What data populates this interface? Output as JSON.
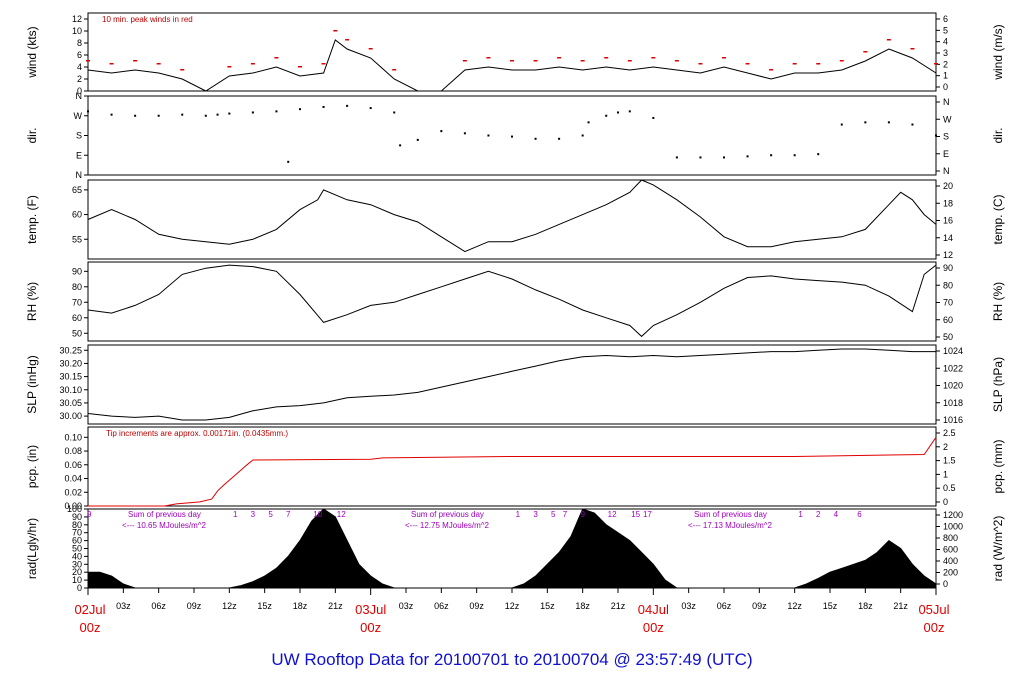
{
  "title": "UW Rooftop Data for 20100701  to  20100704 @ 23:57:49  (UTC)",
  "chart_data": {
    "type": "line",
    "x_range_hours": [
      0,
      72
    ],
    "x_ticks": [
      "03z",
      "06z",
      "09z",
      "12z",
      "15z",
      "18z",
      "21z",
      "03z",
      "06z",
      "09z",
      "12z",
      "15z",
      "18z",
      "21z",
      "03z",
      "06z",
      "09z",
      "12z",
      "15z",
      "18z",
      "21z"
    ],
    "day_labels": [
      {
        "date": "02Jul",
        "time": "00z",
        "hour": 0
      },
      {
        "date": "03Jul",
        "time": "00z",
        "hour": 24
      },
      {
        "date": "04Jul",
        "time": "00z",
        "hour": 48
      },
      {
        "date": "05Jul",
        "time": "00z",
        "hour": 72
      }
    ],
    "panels": [
      {
        "id": "wind",
        "ylabel_left": "wind (kts)",
        "ylabel_right": "wind (m/s)",
        "ylim": [
          0,
          13
        ],
        "left_ticks": [
          "0",
          "2",
          "4",
          "6",
          "8",
          "10",
          "12"
        ],
        "right_ticks": [
          "0",
          "1",
          "2",
          "3",
          "4",
          "5",
          "6"
        ],
        "note": "10 min. peak winds in red",
        "series": [
          {
            "hours": [
              0,
              2,
              4,
              6,
              8,
              10,
              12,
              14,
              16,
              18,
              20,
              21,
              22,
              24,
              26,
              28,
              30,
              32,
              34,
              36,
              38,
              40,
              42,
              44,
              46,
              48,
              50,
              52,
              54,
              56,
              58,
              60,
              62,
              64,
              66,
              68,
              70,
              72
            ],
            "values": [
              3.5,
              3,
              3.5,
              3,
              2,
              0,
              2.5,
              3,
              4,
              2.5,
              3,
              8.5,
              7,
              5.5,
              2,
              0,
              0,
              3.5,
              4,
              3.5,
              3.5,
              4,
              3.5,
              4,
              3.5,
              4,
              3.5,
              3,
              4,
              3,
              2,
              3,
              3,
              3.5,
              5,
              7,
              5.5,
              3
            ]
          }
        ]
      },
      {
        "id": "dir",
        "ylabel_left": "dir.",
        "ylabel_right": "dir.",
        "left_ticks": [
          "N",
          "E",
          "S",
          "W",
          "N"
        ],
        "right_ticks": [
          "N",
          "E",
          "S",
          "W",
          "N"
        ],
        "ylim": [
          0,
          360
        ],
        "series": [
          {
            "hours": [
              0,
              2,
              4,
              6,
              8,
              10,
              11,
              12,
              14,
              16,
              17,
              18,
              20,
              22,
              24,
              26,
              26.5,
              28,
              30,
              32,
              34,
              36,
              38,
              40,
              42,
              42.5,
              44,
              45,
              46,
              48,
              50,
              52,
              54,
              56,
              58,
              60,
              62,
              64,
              66,
              68,
              70,
              72
            ],
            "values": [
              290,
              275,
              270,
              270,
              275,
              270,
              275,
              280,
              285,
              290,
              60,
              300,
              310,
              315,
              305,
              285,
              135,
              160,
              200,
              190,
              180,
              175,
              165,
              165,
              180,
              240,
              270,
              285,
              290,
              260,
              80,
              80,
              80,
              85,
              90,
              90,
              95,
              230,
              240,
              240,
              230,
              180
            ]
          }
        ]
      },
      {
        "id": "temp",
        "ylabel_left": "temp. (F)",
        "ylabel_right": "temp. (C)",
        "ylim": [
          51,
          67
        ],
        "left_ticks": [
          "55",
          "60",
          "65"
        ],
        "right_ticks": [
          "12",
          "14",
          "16",
          "18",
          "20"
        ],
        "series": [
          {
            "hours": [
              0,
              2,
              4,
              6,
              8,
              10,
              12,
              14,
              16,
              18,
              19.5,
              20,
              22,
              24,
              26,
              28,
              30,
              32,
              34,
              36,
              38,
              40,
              42,
              44,
              46,
              47,
              48,
              50,
              52,
              54,
              56,
              58,
              60,
              62,
              64,
              66,
              68,
              69,
              70,
              71,
              72
            ],
            "values": [
              59,
              61,
              59,
              56,
              55,
              54.5,
              54,
              55,
              57,
              61,
              63,
              65,
              63,
              62,
              60,
              58.5,
              55.5,
              52.5,
              54.5,
              54.5,
              56,
              58,
              60,
              62,
              64.5,
              67,
              66,
              63,
              59.5,
              55.5,
              53.5,
              53.5,
              54.5,
              55,
              55.5,
              57,
              62,
              64.5,
              63,
              60,
              58
            ]
          }
        ]
      },
      {
        "id": "rh",
        "ylabel_left": "RH (%)",
        "ylabel_right": "RH (%)",
        "ylim": [
          45,
          96
        ],
        "left_ticks": [
          "50",
          "60",
          "70",
          "80",
          "90"
        ],
        "right_ticks": [
          "50",
          "60",
          "70",
          "80",
          "90"
        ],
        "series": [
          {
            "hours": [
              0,
              2,
              4,
              6,
              8,
              10,
              12,
              14,
              16,
              18,
              20,
              22,
              24,
              26,
              28,
              30,
              32,
              34,
              36,
              38,
              40,
              42,
              44,
              46,
              47,
              48,
              50,
              52,
              54,
              56,
              58,
              60,
              62,
              64,
              66,
              68,
              70,
              71,
              72
            ],
            "values": [
              65,
              63,
              68,
              75,
              88,
              92,
              94,
              93,
              90,
              75,
              57,
              62,
              68,
              70,
              75,
              80,
              85,
              90,
              85,
              78,
              72,
              65,
              60,
              55,
              48,
              55,
              62,
              70,
              79,
              86,
              87,
              85,
              84,
              83,
              81,
              74,
              64,
              88,
              94
            ]
          }
        ]
      },
      {
        "id": "slp",
        "ylabel_left": "SLP (inHg)",
        "ylabel_right": "SLP (hPa)",
        "ylim": [
          29.97,
          30.27
        ],
        "left_ticks": [
          "30.00",
          "30.05",
          "30.10",
          "30.15",
          "30.20",
          "30.25"
        ],
        "right_ticks": [
          "1016",
          "1018",
          "1020",
          "1022",
          "1024"
        ],
        "series": [
          {
            "hours": [
              0,
              2,
              4,
              6,
              8,
              10,
              12,
              14,
              16,
              18,
              20,
              22,
              24,
              26,
              28,
              30,
              32,
              34,
              36,
              38,
              40,
              42,
              44,
              46,
              48,
              50,
              52,
              54,
              56,
              58,
              60,
              62,
              64,
              66,
              68,
              70,
              72
            ],
            "values": [
              30.01,
              30.0,
              29.995,
              30.0,
              29.985,
              29.985,
              29.995,
              30.02,
              30.035,
              30.04,
              30.05,
              30.07,
              30.075,
              30.08,
              30.09,
              30.11,
              30.13,
              30.15,
              30.17,
              30.19,
              30.21,
              30.225,
              30.23,
              30.225,
              30.23,
              30.225,
              30.23,
              30.235,
              30.24,
              30.245,
              30.245,
              30.25,
              30.255,
              30.255,
              30.25,
              30.245,
              30.245
            ]
          }
        ]
      },
      {
        "id": "pcp",
        "ylabel_left": "pcp. (in)",
        "ylabel_right": "pcp. (mm)",
        "ylim": [
          0,
          0.115
        ],
        "left_ticks": [
          "0.00",
          "0.02",
          "0.04",
          "0.06",
          "0.08",
          "0.10"
        ],
        "right_ticks": [
          "0",
          "0.5",
          "1",
          "1.5",
          "2",
          "2.5"
        ],
        "note": "Tip increments are approx. 0.00171in. (0.0435mm.)",
        "series": [
          {
            "hours": [
              0,
              6.5,
              7.5,
              9.5,
              10.5,
              11,
              11.5,
              12.5,
              13.5,
              14,
              24,
              25,
              36,
              48,
              60,
              71,
              72
            ],
            "values": [
              0,
              0,
              0.003,
              0.006,
              0.01,
              0.022,
              0.03,
              0.045,
              0.06,
              0.067,
              0.068,
              0.07,
              0.072,
              0.072,
              0.072,
              0.075,
              0.1
            ]
          }
        ]
      },
      {
        "id": "rad",
        "ylabel_left": "rad(Lgly/hr)",
        "ylabel_right": "rad (W/m^2)",
        "ylim": [
          0,
          100
        ],
        "left_ticks": [
          "0",
          "10",
          "20",
          "30",
          "40",
          "50",
          "60",
          "70",
          "80",
          "90",
          "100"
        ],
        "right_ticks": [
          "0",
          "200",
          "400",
          "600",
          "800",
          "1000",
          "1200"
        ],
        "daily_sums": [
          "Sum of previous day\n<--- 10.65 MJoules/m^2",
          "Sum of previous day\n<--- 12.75 MJoules/m^2",
          "Sum of previous day\n<--- 17.13 MJoules/m^2"
        ],
        "hour_marks": [
          [
            "9"
          ],
          [
            "1",
            "3",
            "5",
            "7",
            "10",
            "12"
          ],
          [
            "1",
            "3",
            "5",
            "7",
            "9",
            "12",
            "15",
            "17"
          ],
          [
            "1",
            "2",
            "4",
            "6"
          ]
        ],
        "series": [
          {
            "hours": [
              0,
              1,
              2,
              3,
              4,
              12,
              13,
              14,
              15,
              16,
              17,
              18,
              19,
              20,
              21,
              22,
              23,
              24,
              25,
              26,
              36,
              37,
              38,
              39,
              40,
              41,
              42,
              43,
              44,
              45,
              46,
              47,
              48,
              49,
              50,
              60,
              61,
              62,
              63,
              64,
              65,
              66,
              67,
              68,
              69,
              70,
              71,
              72
            ],
            "values": [
              20,
              20,
              15,
              5,
              0,
              0,
              3,
              8,
              15,
              25,
              40,
              60,
              85,
              100,
              90,
              60,
              30,
              15,
              5,
              0,
              0,
              5,
              15,
              30,
              45,
              65,
              100,
              95,
              80,
              70,
              60,
              45,
              30,
              10,
              0,
              0,
              5,
              12,
              20,
              25,
              30,
              35,
              45,
              60,
              50,
              30,
              15,
              5
            ]
          }
        ]
      }
    ]
  },
  "colors": {
    "title": "#1010d0",
    "day_label": "#e00000",
    "peak": "#e00000",
    "note": "#c00000",
    "rad_note": "#a000c0"
  }
}
